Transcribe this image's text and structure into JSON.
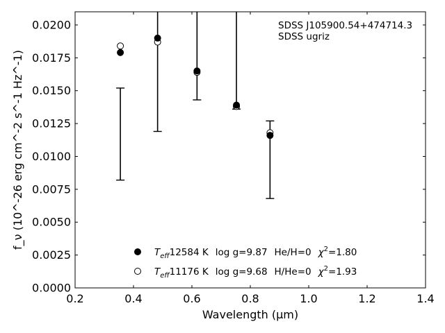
{
  "chart_data": {
    "type": "scatter",
    "xlabel": "Wavelength (μm)",
    "ylabel": "f_ν (10^-26 erg cm^-2 s^-1 Hz^-1)",
    "xlim": [
      0.2,
      1.4
    ],
    "ylim": [
      0.0,
      0.021
    ],
    "x_ticks": [
      "0.2",
      "0.4",
      "0.6",
      "0.8",
      "1.0",
      "1.2",
      "1.4"
    ],
    "y_ticks": [
      "0.0000",
      "0.0025",
      "0.0050",
      "0.0075",
      "0.0100",
      "0.0125",
      "0.0150",
      "0.0175",
      "0.0200"
    ],
    "grid": false,
    "annotation": {
      "line1": "SDSS J105900.54+474714.3",
      "line2": "SDSS ugriz"
    },
    "observed": {
      "name": "SDSS ugriz",
      "points": [
        {
          "x": 0.355,
          "ylow": 0.0082,
          "yhigh": 0.0152
        },
        {
          "x": 0.4825,
          "ylow": 0.0119,
          "yhigh": 0.021
        },
        {
          "x": 0.6175,
          "ylow": 0.0143,
          "yhigh": 0.021
        },
        {
          "x": 0.7525,
          "ylow": 0.0136,
          "yhigh": 0.021
        },
        {
          "x": 0.8675,
          "ylow": 0.0068,
          "yhigh": 0.0127
        }
      ]
    },
    "series": [
      {
        "name": "He/H=0",
        "marker": "filled",
        "legend": {
          "teff": "12584 K",
          "logg": "log g=9.87",
          "comp": "He/H=0",
          "chi2": "=1.80"
        },
        "x": [
          0.355,
          0.4825,
          0.6175,
          0.7525,
          0.8675
        ],
        "y": [
          0.0179,
          0.019,
          0.0165,
          0.0139,
          0.0116
        ]
      },
      {
        "name": "H/He=0",
        "marker": "open",
        "legend": {
          "teff": "11176 K",
          "logg": "log g=9.68",
          "comp": "H/He=0",
          "chi2": "=1.93"
        },
        "x": [
          0.355,
          0.4825,
          0.6175,
          0.7525,
          0.8675
        ],
        "y": [
          0.0184,
          0.0187,
          0.0164,
          0.0138,
          0.0118
        ]
      }
    ],
    "legend_position": "lower-center",
    "colors": {
      "axis": "#000000",
      "marker": "#000000",
      "background": "#ffffff"
    }
  }
}
